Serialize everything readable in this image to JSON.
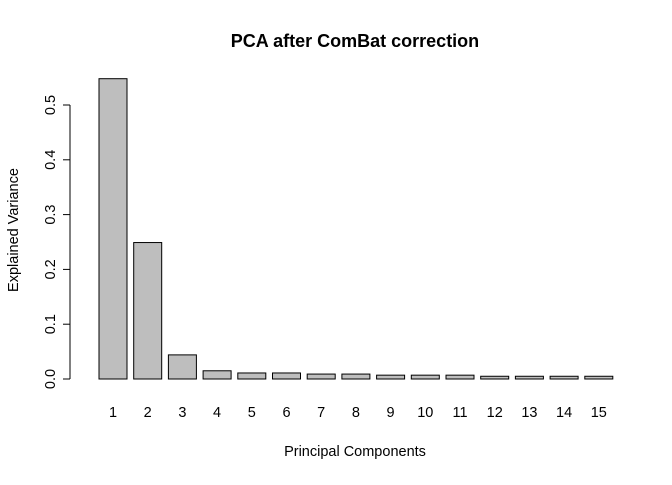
{
  "chart_data": {
    "type": "bar",
    "title": "PCA after ComBat correction",
    "xlabel": "Principal Components",
    "ylabel": "Explained Variance",
    "categories": [
      "1",
      "2",
      "3",
      "4",
      "5",
      "6",
      "7",
      "8",
      "9",
      "10",
      "11",
      "12",
      "13",
      "14",
      "15"
    ],
    "values": [
      0.548,
      0.249,
      0.044,
      0.015,
      0.011,
      0.011,
      0.009,
      0.009,
      0.007,
      0.007,
      0.007,
      0.005,
      0.005,
      0.005,
      0.005
    ],
    "ylim": [
      0,
      0.55
    ],
    "yticks": [
      "0.0",
      "0.1",
      "0.2",
      "0.3",
      "0.4",
      "0.5"
    ],
    "bar_color": "#bebebe",
    "bar_border_color": "#000000",
    "grid": false,
    "legend": "none"
  }
}
